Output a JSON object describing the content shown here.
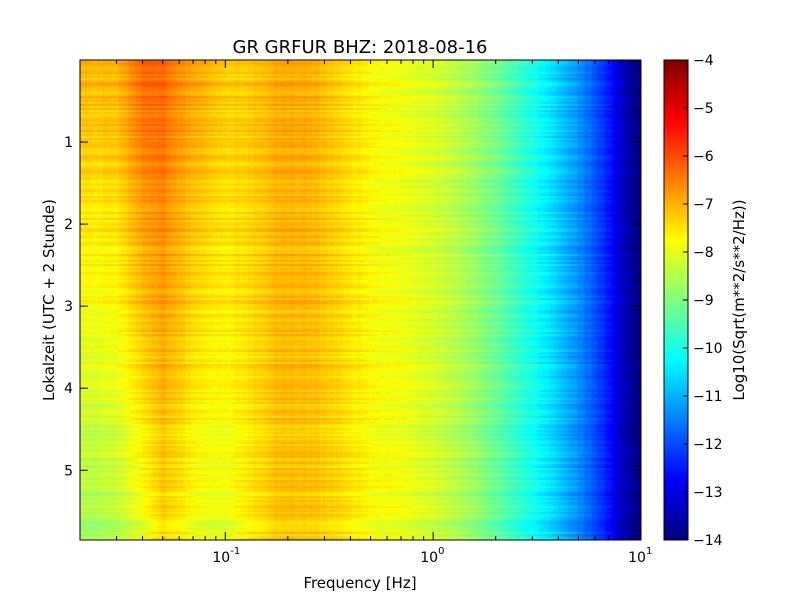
{
  "chart_data": {
    "type": "heatmap",
    "title": "GR GRFUR BHZ: 2018-08-16",
    "xlabel": "Frequency [Hz]",
    "ylabel": "Lokalzeit (UTC + 2 Stunde)",
    "x_scale": "log",
    "xlim": [
      0.02,
      10
    ],
    "ylim": [
      5.85,
      0
    ],
    "y_inverted": true,
    "x_ticks": [
      {
        "value": 0.1,
        "base": "10",
        "exp": "-1"
      },
      {
        "value": 1,
        "base": "10",
        "exp": "0"
      },
      {
        "value": 10,
        "base": "10",
        "exp": "1"
      }
    ],
    "y_ticks": [
      {
        "value": 1,
        "label": "1"
      },
      {
        "value": 2,
        "label": "2"
      },
      {
        "value": 3,
        "label": "3"
      },
      {
        "value": 4,
        "label": "4"
      },
      {
        "value": 5,
        "label": "5"
      }
    ],
    "colorbar": {
      "label": "Log10(Sqrt(m**2/s**2/Hz))",
      "colormap": "jet",
      "range": [
        -14,
        -4
      ],
      "ticks": [
        {
          "value": -4,
          "label": "−4"
        },
        {
          "value": -5,
          "label": "−5"
        },
        {
          "value": -6,
          "label": "−6"
        },
        {
          "value": -7,
          "label": "−7"
        },
        {
          "value": -8,
          "label": "−8"
        },
        {
          "value": -9,
          "label": "−9"
        },
        {
          "value": -10,
          "label": "−10"
        },
        {
          "value": -11,
          "label": "−11"
        },
        {
          "value": -12,
          "label": "−12"
        },
        {
          "value": -13,
          "label": "−13"
        },
        {
          "value": -14,
          "label": "−14"
        }
      ]
    },
    "freq_profile": {
      "freq_hz": [
        0.02,
        0.03,
        0.04,
        0.05,
        0.06,
        0.075,
        0.1,
        0.13,
        0.18,
        0.25,
        0.35,
        0.5,
        0.7,
        1.0,
        1.5,
        2.0,
        3.0,
        4.0,
        5.0,
        6.0,
        7.0,
        8.0,
        9.0,
        10.0
      ],
      "value_early": [
        -7.0,
        -7.0,
        -6.2,
        -6.2,
        -6.6,
        -6.9,
        -7.2,
        -7.2,
        -6.9,
        -6.9,
        -7.3,
        -7.7,
        -7.9,
        -8.1,
        -8.6,
        -9.1,
        -10.0,
        -10.7,
        -11.3,
        -11.9,
        -12.5,
        -13.2,
        -13.8,
        -14.0
      ],
      "value_late": [
        -8.7,
        -8.5,
        -8.0,
        -7.4,
        -7.6,
        -8.0,
        -8.0,
        -7.6,
        -7.2,
        -7.2,
        -7.4,
        -7.8,
        -7.9,
        -8.2,
        -8.7,
        -9.3,
        -10.1,
        -10.8,
        -11.4,
        -12.0,
        -12.6,
        -13.3,
        -13.8,
        -14.0
      ]
    }
  }
}
